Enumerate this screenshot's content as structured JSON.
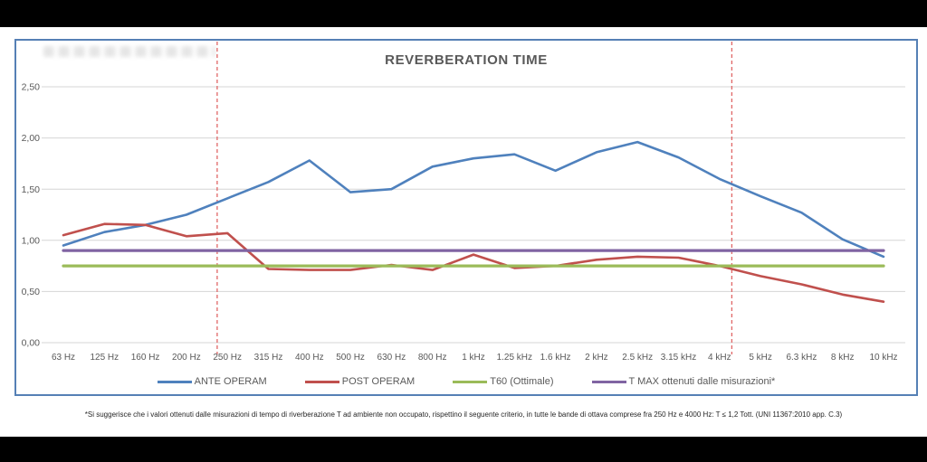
{
  "page": {
    "title": "REVERBERATION TIME"
  },
  "chart_data": {
    "type": "line",
    "title": "REVERBERATION TIME",
    "categories": [
      "63 Hz",
      "125 Hz",
      "160 Hz",
      "200 Hz",
      "250 Hz",
      "315 Hz",
      "400 Hz",
      "500 Hz",
      "630 Hz",
      "800 Hz",
      "1 kHz",
      "1.25 kHz",
      "1.6 kHz",
      "2 kHz",
      "2.5 kHz",
      "3.15 kHz",
      "4 kHz",
      "5 kHz",
      "6.3 kHz",
      "8 kHz",
      "10 kHz"
    ],
    "series": [
      {
        "name": "ANTE OPERAM",
        "color": "#4F81BD",
        "stroke_width": 2.6,
        "values": [
          0.95,
          1.08,
          1.15,
          1.25,
          1.41,
          1.57,
          1.78,
          1.47,
          1.5,
          1.72,
          1.8,
          1.84,
          1.68,
          1.86,
          1.96,
          1.81,
          1.6,
          1.43,
          1.27,
          1.01,
          0.84
        ]
      },
      {
        "name": "POST OPERAM",
        "color": "#C0504D",
        "stroke_width": 2.6,
        "values": [
          1.05,
          1.16,
          1.15,
          1.04,
          1.07,
          0.72,
          0.71,
          0.71,
          0.76,
          0.71,
          0.86,
          0.73,
          0.75,
          0.81,
          0.84,
          0.83,
          0.75,
          0.65,
          0.57,
          0.47,
          0.4
        ]
      },
      {
        "name": "T60 (Ottimale)",
        "color": "#9BBB59",
        "stroke_width": 3.2,
        "values": [
          0.75,
          0.75,
          0.75,
          0.75,
          0.75,
          0.75,
          0.75,
          0.75,
          0.75,
          0.75,
          0.75,
          0.75,
          0.75,
          0.75,
          0.75,
          0.75,
          0.75,
          0.75,
          0.75,
          0.75,
          0.75
        ]
      },
      {
        "name": "T MAX ottenuti dalle misurazioni*",
        "color": "#8064A2",
        "stroke_width": 3.2,
        "values": [
          0.9,
          0.9,
          0.9,
          0.9,
          0.9,
          0.9,
          0.9,
          0.9,
          0.9,
          0.9,
          0.9,
          0.9,
          0.9,
          0.9,
          0.9,
          0.9,
          0.9,
          0.9,
          0.9,
          0.9,
          0.9
        ]
      }
    ],
    "ylim": [
      0,
      2.5
    ],
    "y_ticks": [
      {
        "value": 2.5,
        "label": "2,50"
      },
      {
        "value": 2.0,
        "label": "2,00"
      },
      {
        "value": 1.5,
        "label": "1,50"
      },
      {
        "value": 1.0,
        "label": "1,00"
      },
      {
        "value": 0.5,
        "label": "0,50"
      },
      {
        "value": 0.0,
        "label": "0,00"
      }
    ],
    "grid": "horizontal",
    "gridline_color": "#d6d6d6",
    "legend_position": "bottom",
    "vlines": [
      {
        "at": "250 Hz",
        "index": 3.75,
        "style": "dashed",
        "color": "#E06666"
      },
      {
        "at": "4 kHz",
        "index": 16.3,
        "style": "dashed",
        "color": "#E06666"
      }
    ]
  },
  "footnote": {
    "text": "*Si suggerisce che i valori ottenuti dalle misurazioni di tempo di riverberazione T ad ambiente non occupato, rispettino il seguente criterio, in tutte le bande di ottava comprese fra 250 Hz e 4000 Hz: T ≤ 1,2 Tott. (UNI 11367:2010 app. C.3)"
  }
}
